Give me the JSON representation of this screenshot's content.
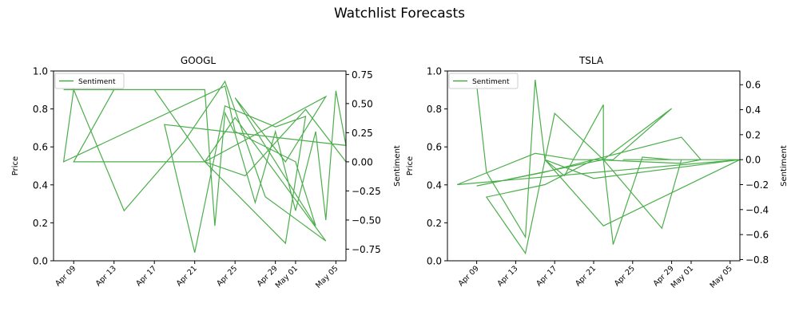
{
  "figure_title": "Watchlist Forecasts",
  "chart_data": [
    {
      "type": "line",
      "title": "GOOGL",
      "ylabel_left": "Price",
      "ylabel_right": "Sentiment",
      "ylim_left": [
        0.0,
        1.0
      ],
      "ylim_right": [
        -0.85,
        0.78
      ],
      "left_ticks": [
        "0.0",
        "0.2",
        "0.4",
        "0.6",
        "0.8",
        "1.0"
      ],
      "right_ticks": [
        "−0.75",
        "−0.50",
        "−0.25",
        "0.00",
        "0.25",
        "0.50",
        "0.75"
      ],
      "x_ticks": [
        "Apr 09",
        "Apr 13",
        "Apr 17",
        "Apr 21",
        "Apr 25",
        "Apr 29",
        "May 01",
        "May 05"
      ],
      "x_range": [
        "2024-04-07",
        "2024-05-06"
      ],
      "legend": [
        "Sentiment"
      ],
      "legend_position": "upper-left",
      "series": [
        {
          "name": "Sentiment",
          "color": "#2ca02c",
          "x": [
            "2024-04-08",
            "2024-04-11",
            "2024-04-14",
            "2024-04-15",
            "2024-04-19",
            "2024-04-22",
            "2024-04-23",
            "2024-04-24",
            "2024-04-25",
            "2024-04-27",
            "2024-04-29",
            "2024-04-30",
            "2024-05-01",
            "2024-05-03",
            "2024-05-04",
            "2024-05-05",
            "2024-05-06",
            "2024-04-18",
            "2024-04-21",
            "2024-04-24",
            "2024-04-29",
            "2024-05-02",
            "2024-04-30",
            "2024-04-22",
            "2024-04-17",
            "2024-04-13",
            "2024-04-09",
            "2024-04-16",
            "2024-04-22",
            "2024-04-25",
            "2024-05-04",
            "2024-04-28",
            "2024-04-24",
            "2024-04-20",
            "2024-04-14",
            "2024-04-09",
            "2024-04-08",
            "2024-04-24",
            "2024-04-25",
            "2024-05-01",
            "2024-05-03",
            "2024-04-25",
            "2024-04-30",
            "2024-05-04",
            "2024-04-22",
            "2024-04-26",
            "2024-05-02",
            "2024-05-06"
          ],
          "y": [
            0.62,
            0.62,
            0.62,
            0.62,
            0.62,
            0.62,
            -0.55,
            0.42,
            0.24,
            -0.35,
            0.26,
            -0.08,
            -0.42,
            0.26,
            -0.5,
            0.61,
            0.14,
            0.32,
            -0.78,
            0.48,
            0.3,
            0.39,
            -0.7,
            0.0,
            0.62,
            0.62,
            0.0,
            0.0,
            0.0,
            0.38,
            -0.68,
            -0.3,
            0.69,
            0.18,
            -0.42,
            0.62,
            0.0,
            0.65,
            0.26,
            0.0,
            -0.55,
            0.55,
            0.0,
            0.56,
            0.0,
            -0.12,
            0.45,
            0.0
          ]
        }
      ]
    },
    {
      "type": "line",
      "title": "TSLA",
      "ylabel_left": "Price",
      "ylabel_right": "Sentiment",
      "ylim_left": [
        0.0,
        1.0
      ],
      "ylim_right": [
        -0.81,
        0.71
      ],
      "left_ticks": [
        "0.0",
        "0.2",
        "0.4",
        "0.6",
        "0.8",
        "1.0"
      ],
      "right_ticks": [
        "−0.8",
        "−0.6",
        "−0.4",
        "−0.2",
        "0.0",
        "0.2",
        "0.4",
        "0.6"
      ],
      "x_ticks": [
        "Apr 09",
        "Apr 13",
        "Apr 17",
        "Apr 21",
        "Apr 25",
        "Apr 29",
        "May 01",
        "May 05"
      ],
      "x_range": [
        "2024-04-06",
        "2024-05-06"
      ],
      "legend": [
        "Sentiment"
      ],
      "legend_position": "upper-left",
      "series": [
        {
          "name": "Sentiment",
          "color": "#2ca02c",
          "x": [
            "2024-04-09",
            "2024-04-09",
            "2024-04-10",
            "2024-04-14",
            "2024-04-15",
            "2024-04-16",
            "2024-04-18",
            "2024-04-22",
            "2024-04-22",
            "2024-04-23",
            "2024-04-26",
            "2024-04-29",
            "2024-04-30",
            "2024-05-01",
            "2024-05-03",
            "2024-05-06",
            "2024-05-06",
            "2024-04-30",
            "2024-04-28",
            "2024-04-22",
            "2024-04-17",
            "2024-04-14",
            "2024-04-10",
            "2024-04-16",
            "2024-04-21",
            "2024-04-30",
            "2024-05-02",
            "2024-04-30",
            "2024-04-21",
            "2024-04-16",
            "2024-04-09",
            "2024-04-22",
            "2024-04-29",
            "2024-04-23",
            "2024-04-19",
            "2024-04-15",
            "2024-04-07",
            "2024-05-06",
            "2024-04-21",
            "2024-04-16",
            "2024-04-22",
            "2024-05-06",
            "2024-04-24",
            "2024-04-29",
            "2024-05-06"
          ],
          "y": [
            0.59,
            0.6,
            -0.1,
            -0.62,
            0.64,
            0.0,
            -0.13,
            0.44,
            0.0,
            -0.68,
            0.02,
            0.0,
            0.0,
            0.0,
            0.0,
            0.0,
            0.0,
            0.0,
            -0.55,
            0.0,
            0.37,
            -0.75,
            -0.3,
            -0.2,
            0.0,
            0.18,
            0.0,
            -0.03,
            0.0,
            -0.1,
            -0.21,
            0.0,
            0.41,
            0.0,
            0.0,
            0.05,
            -0.2,
            0.0,
            -0.15,
            0.0,
            -0.53,
            0.0,
            0.0,
            0.0,
            0.0
          ]
        }
      ]
    }
  ]
}
